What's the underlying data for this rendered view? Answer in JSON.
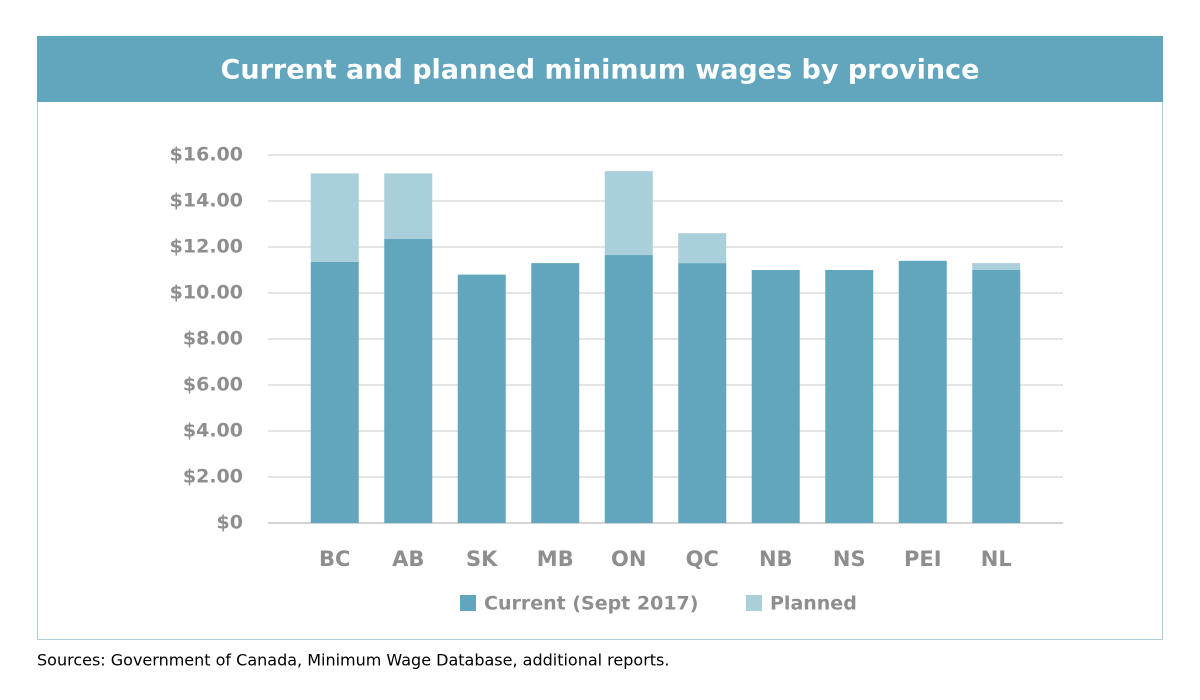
{
  "chart_data": {
    "type": "stacked_bar",
    "title": "Current and planned minimum wages by province",
    "categories": [
      "BC",
      "AB",
      "SK",
      "MB",
      "ON",
      "QC",
      "NB",
      "NS",
      "PEI",
      "NL"
    ],
    "series": [
      {
        "name": "Current (Sept 2017)",
        "color": "#62a6bd",
        "values": [
          11.35,
          12.35,
          10.8,
          11.3,
          11.65,
          11.3,
          11.0,
          11.0,
          11.4,
          11.0
        ]
      },
      {
        "name": "Planned",
        "color": "#a9cfda",
        "values": [
          3.85,
          2.85,
          null,
          null,
          3.65,
          1.3,
          null,
          null,
          null,
          0.3
        ]
      }
    ],
    "ylim": [
      0,
      16
    ],
    "yticks": [
      {
        "value": 0,
        "label": "$0"
      },
      {
        "value": 2,
        "label": "$2.00"
      },
      {
        "value": 4,
        "label": "$4.00"
      },
      {
        "value": 6,
        "label": "$6.00"
      },
      {
        "value": 8,
        "label": "$8.00"
      },
      {
        "value": 10,
        "label": "$10.00"
      },
      {
        "value": 12,
        "label": "$12.00"
      },
      {
        "value": 14,
        "label": "$14.00"
      },
      {
        "value": 16,
        "label": "$16.00"
      }
    ],
    "grid": true,
    "source": "Sources: Government of Canada, Minimum Wage Database, additional reports."
  }
}
